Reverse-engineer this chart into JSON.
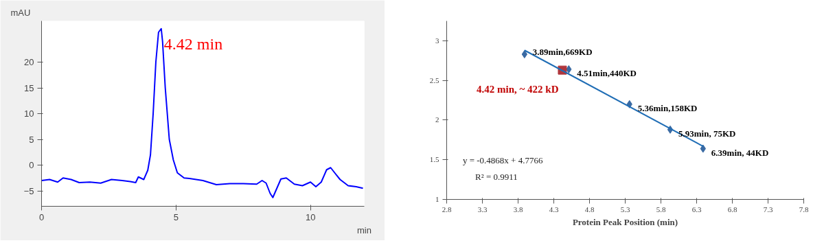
{
  "chart_data": [
    {
      "type": "line",
      "xlabel": "min",
      "ylabel": "mAU",
      "xlim": [
        0,
        12
      ],
      "ylim": [
        -8,
        28
      ],
      "xticks": [
        0,
        5,
        10
      ],
      "yticks": [
        -5,
        0,
        5,
        10,
        15,
        20
      ],
      "grid": false,
      "marker": "none",
      "line_style": "solid",
      "series": [
        {
          "color": "#0000ff",
          "x": [
            0,
            0.3,
            0.6,
            0.8,
            1.1,
            1.4,
            1.8,
            2.2,
            2.6,
            3.0,
            3.3,
            3.5,
            3.6,
            3.8,
            3.95,
            4.05,
            4.15,
            4.25,
            4.35,
            4.45,
            4.5,
            4.6,
            4.75,
            4.9,
            5.05,
            5.3,
            5.5,
            6.0,
            6.5,
            7.0,
            7.5,
            8.0,
            8.2,
            8.35,
            8.5,
            8.6,
            8.75,
            8.9,
            9.1,
            9.4,
            9.7,
            10.0,
            10.2,
            10.4,
            10.6,
            10.75,
            10.9,
            11.1,
            11.4,
            11.7,
            11.95
          ],
          "values": [
            -3,
            -2.8,
            -3.3,
            -2.5,
            -2.8,
            -3.4,
            -3.3,
            -3.5,
            -2.8,
            -3.0,
            -3.2,
            -3.4,
            -2.3,
            -2.8,
            -1,
            2,
            10,
            20,
            25.8,
            26.5,
            24,
            15,
            5,
            1,
            -1.5,
            -2.5,
            -2.6,
            -3.0,
            -3.8,
            -3.6,
            -3.6,
            -3.7,
            -3,
            -3.5,
            -5.5,
            -6.3,
            -4.5,
            -2.7,
            -2.5,
            -3.7,
            -4,
            -3.3,
            -4.2,
            -3.3,
            -0.9,
            -0.5,
            -1.5,
            -2.8,
            -4,
            -4.2,
            -4.5
          ]
        }
      ],
      "annotations": [
        {
          "text": "4.42 min",
          "x": 4.45,
          "y": 26.5
        }
      ]
    },
    {
      "type": "scatter",
      "xlabel": "Protein Peak Position (min)",
      "xlim": [
        2.8,
        7.8
      ],
      "ylim": [
        1,
        3.25
      ],
      "xticks": [
        2.8,
        3.3,
        3.8,
        4.3,
        4.8,
        5.3,
        5.8,
        6.3,
        6.8,
        7.3,
        7.8
      ],
      "yticks": [
        1,
        1.5,
        2,
        2.5,
        3
      ],
      "grid": false,
      "series": [
        {
          "type": "scatter",
          "marker": "diamond",
          "color": "#3a6aa3",
          "x": [
            3.89,
            4.51,
            5.36,
            5.93,
            6.39
          ],
          "values": [
            2.83,
            2.64,
            2.2,
            1.88,
            1.64
          ]
        },
        {
          "type": "scatter",
          "marker": "square",
          "color": "#b0363c",
          "x": [
            4.42
          ],
          "values": [
            2.63
          ]
        },
        {
          "type": "line",
          "marker": "none",
          "line_style": "solid",
          "color": "#1f6db5",
          "x": [
            3.89,
            6.39
          ],
          "values": [
            2.88,
            1.67
          ]
        }
      ],
      "annotations": [
        {
          "text": "3.89min,669KD",
          "x": 3.89,
          "y": 2.83
        },
        {
          "text": "4.51min,440KD",
          "x": 4.51,
          "y": 2.64
        },
        {
          "text": "5.36min,158KD",
          "x": 5.36,
          "y": 2.2
        },
        {
          "text": "5.93min, 75KD",
          "x": 5.93,
          "y": 1.88
        },
        {
          "text": "6.39min, 44KD",
          "x": 6.39,
          "y": 1.64
        },
        {
          "text": "4.42 min, ~ 422 kD",
          "x": 4.42,
          "y": 2.63
        },
        "y = -0.4868x + 4.7766",
        "R² = 0.9911"
      ]
    }
  ]
}
